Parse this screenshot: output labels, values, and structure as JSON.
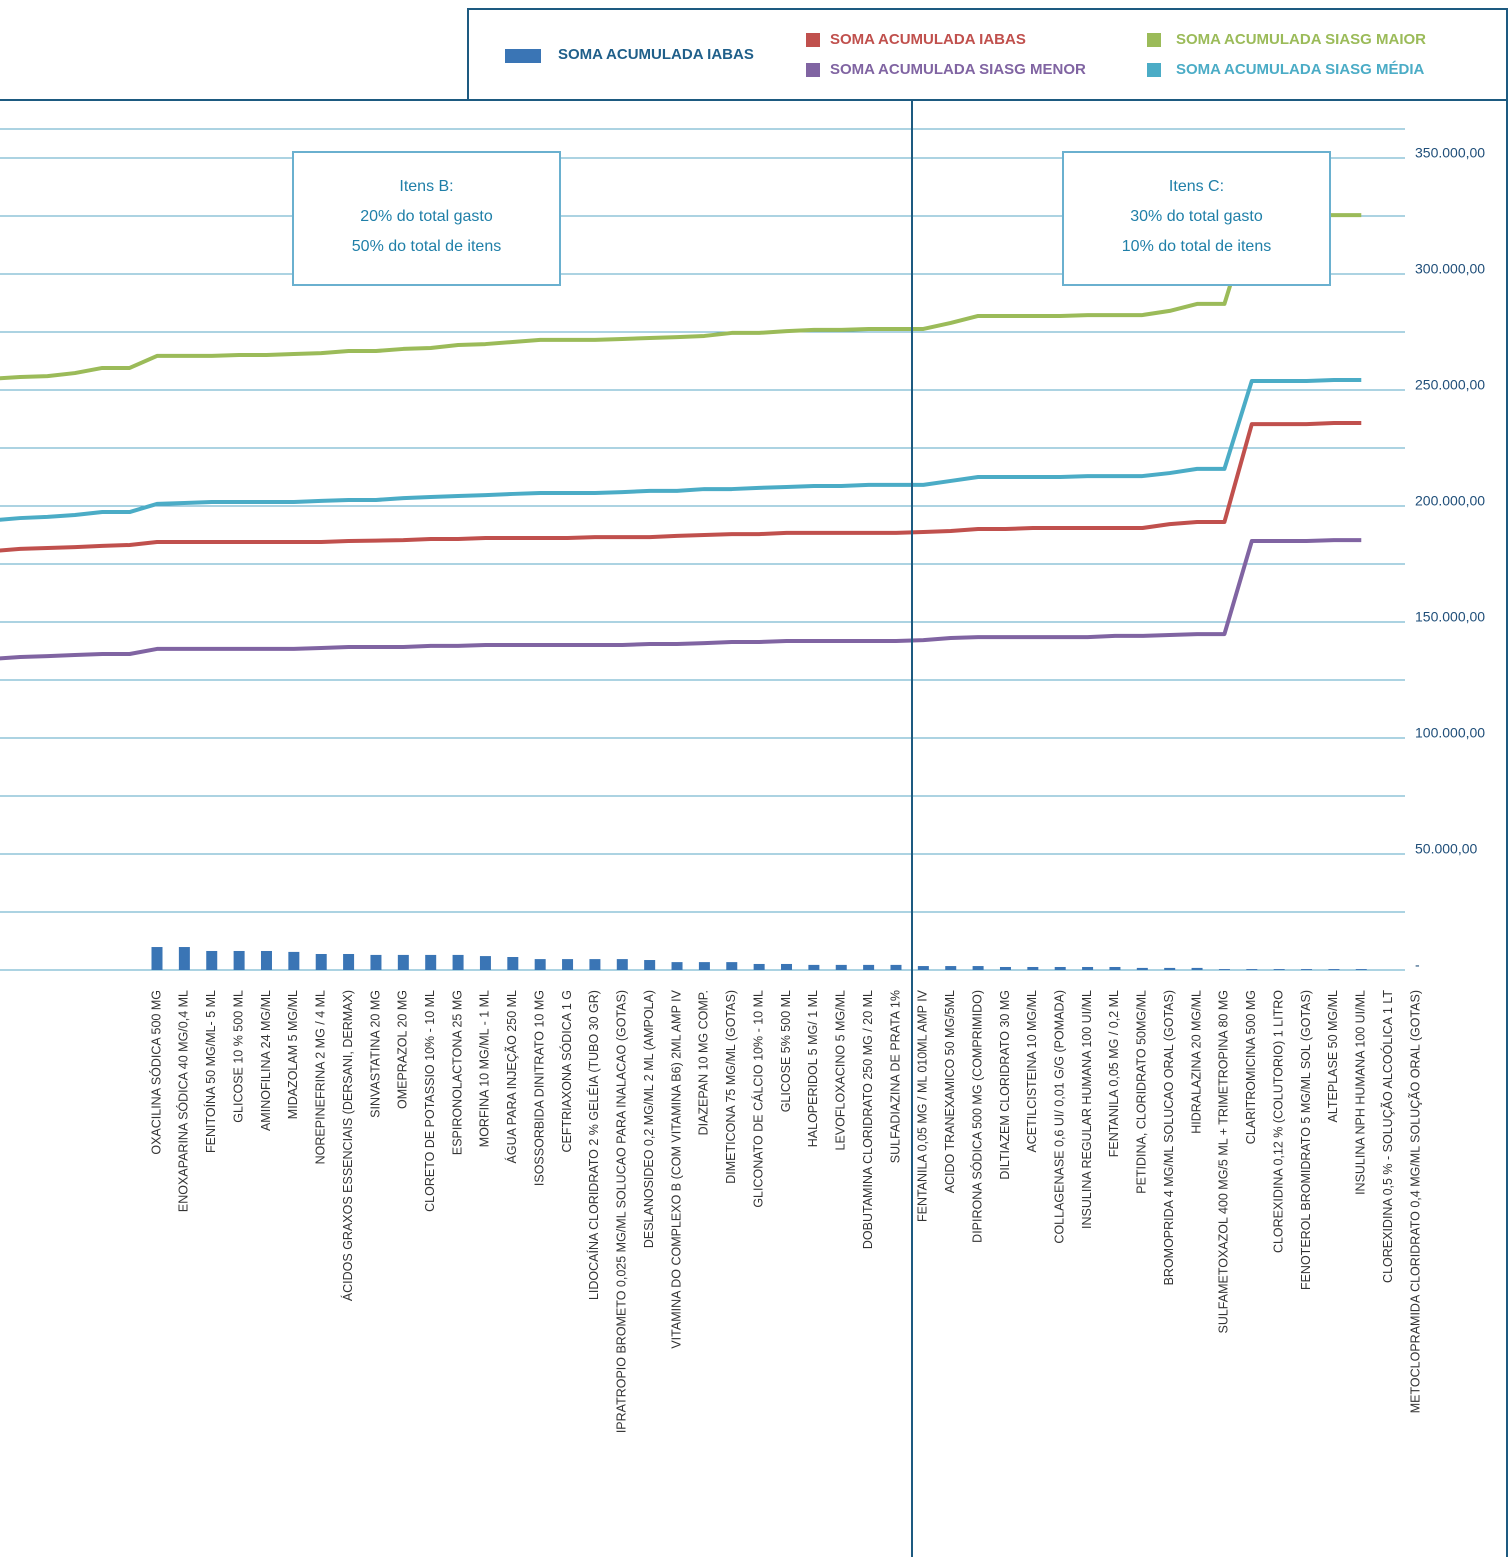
{
  "chart_data": {
    "type": "combo",
    "categories": [
      null,
      null,
      null,
      null,
      null,
      null,
      "OXACILINA SÓDICA 500 MG",
      "ENOXAPARINA SÓDICA 40 MG/0,4 ML",
      "FENITOÍNA 50 MG/ML- 5 ML",
      "GLICOSE 10 % 500 ML",
      "AMINOFILINA 24 MG/ML",
      "MIDAZOLAM 5 MG/ML",
      "NOREPINEFRINA 2 MG / 4 ML",
      "ÁCIDOS GRAXOS ESSENCIAIS (DERSANI, DERMAX)",
      "SINVASTATINA 20 MG",
      "OMEPRAZOL 20 MG",
      "CLORETO DE POTASSIO 10% - 10 ML",
      "ESPIRONOLACTONA 25 MG",
      "MORFINA 10 MG/ML - 1 ML",
      "ÁGUA PARA INJEÇÃO 250 ML",
      "ISOSSORBIDA DINITRATO 10 MG",
      "CEFTRIAXONA SÓDICA 1 G",
      "LIDOCAÍNA CLORIDRATO 2 % GELÉIA (TUBO 30 GR)",
      "IPRATROPIO BROMETO 0,025 MG/ML SOLUCAO PARA INALACAO (GOTAS)",
      "DESLANOSIDEO 0,2 MG/ML 2 ML (AMPOLA)",
      "VITAMINA DO COMPLEXO B (COM VITAMINA B6) 2ML AMP IV",
      "DIAZEPAN 10 MG COMP.",
      "DIMETICONA 75 MG/ML (GOTAS)",
      "GLICONATO DE CÁLCIO 10% - 10 ML",
      "GLICOSE 5% 500 ML",
      "HALOPERIDOL 5 MG/ 1 ML",
      "LEVOFLOXACINO 5 MG/ML",
      "DOBUTAMINA CLORIDRATO 250 MG / 20 ML",
      "SULFADIAZINA DE PRATA 1%",
      "FENTANILA 0,05 MG / ML 010ML AMP IV",
      "ACIDO TRANEXAMICO 50 MG/5ML",
      "DIPIRONA SÓDICA 500 MG (COMPRIMIDO)",
      "DILTIAZEM CLORIDRATO 30 MG",
      "ACETILCISTEINA 10 MG/ML",
      "COLLAGENASE 0,6 UI/ 0,01 G/G (POMADA)",
      "INSULINA REGULAR HUMANA 100 UI/ML",
      "FENTANILA 0,05 MG / 0,2 ML",
      "PETIDINA, CLORIDRATO 50MG/ML",
      "BROMOPRIDA 4 MG/ML SOLUCAO ORAL (GOTAS)",
      "HIDRALAZINA 20 MG/ML",
      "SULFAMETOXAZOL 400 MG/5 ML + TRIMETROPINA 80 MG",
      "CLARITROMICINA 500 MG",
      "CLOREXIDINA 0,12 % (COLUTORIO) 1 LITRO",
      "FENOTEROL BROMIDRATO 5 MG/ML SOL (GOTAS)",
      "ALTEPLASE 50 MG/ML",
      "INSULINA NPH HUMANA 100 UI/ML",
      "CLOREXIDINA 0,5 % - SOLUÇÃO ALCOÓLICA 1 LT",
      "METOCLOPRAMIDA CLORIDRATO 0,4 MG/ML SOLUÇÃO ORAL (GOTAS)"
    ],
    "series": [
      {
        "name": "SOMA ACUMULADA IABAS",
        "type": "bar",
        "color": "#3a75b5",
        "values": [
          null,
          null,
          null,
          null,
          null,
          null,
          9900,
          9900,
          8200,
          8200,
          8200,
          7800,
          6900,
          6900,
          6500,
          6500,
          6500,
          6500,
          6000,
          5600,
          4700,
          4700,
          4700,
          4700,
          4300,
          3400,
          3400,
          3400,
          2600,
          2600,
          2200,
          2200,
          2200,
          2200,
          1700,
          1700,
          1700,
          1300,
          1300,
          1300,
          1300,
          1300,
          900,
          900,
          900,
          400,
          400,
          400,
          400,
          400,
          400,
          null,
          null
        ]
      },
      {
        "name": "SOMA ACUMULADA IABAS",
        "type": "line",
        "color": "#c0504d",
        "values": [
          180600,
          181500,
          181900,
          182300,
          182800,
          183200,
          184500,
          184500,
          184500,
          184500,
          184500,
          184500,
          184500,
          184900,
          185100,
          185300,
          185800,
          185800,
          186200,
          186200,
          186200,
          186200,
          186600,
          186600,
          186600,
          187100,
          187500,
          187900,
          187900,
          188400,
          188400,
          188400,
          188400,
          188400,
          188800,
          189200,
          190100,
          190100,
          190500,
          190500,
          190500,
          190500,
          190500,
          192200,
          193100,
          193100,
          235300,
          235300,
          235300,
          235800,
          235800,
          null,
          null
        ]
      },
      {
        "name": "SOMA ACUMULADA SIASG MAIOR",
        "type": "line",
        "color": "#9bbb59",
        "values": [
          254900,
          255600,
          256000,
          257300,
          259500,
          259500,
          264700,
          264700,
          264700,
          265100,
          265100,
          265500,
          265900,
          266800,
          266800,
          267700,
          268100,
          269400,
          269800,
          270700,
          271600,
          271600,
          271600,
          272000,
          272400,
          272800,
          273300,
          274600,
          274600,
          275400,
          275900,
          275900,
          276300,
          276300,
          276300,
          278900,
          281900,
          281900,
          281900,
          281900,
          282300,
          282300,
          282300,
          284100,
          287100,
          287100,
          325400,
          325400,
          325400,
          325400,
          325400,
          null,
          null
        ]
      },
      {
        "name": "SOMA ACUMULADA SIASG MENOR",
        "type": "line",
        "color": "#8064a2",
        "values": [
          134100,
          134900,
          135300,
          135800,
          136200,
          136200,
          138400,
          138400,
          138400,
          138400,
          138400,
          138400,
          138800,
          139200,
          139200,
          139200,
          139700,
          139700,
          140100,
          140100,
          140100,
          140100,
          140100,
          140100,
          140500,
          140500,
          140900,
          141400,
          141400,
          141800,
          141800,
          141800,
          141800,
          141800,
          142200,
          143100,
          143500,
          143500,
          143500,
          143500,
          143500,
          144000,
          144000,
          144400,
          144800,
          144800,
          184900,
          184900,
          184900,
          185300,
          185300,
          null,
          null
        ]
      },
      {
        "name": "SOMA ACUMULADA SIASG MÉDIA",
        "type": "line",
        "color": "#4bacc6",
        "values": [
          193800,
          194800,
          195300,
          196100,
          197400,
          197400,
          200900,
          201300,
          201700,
          201700,
          201700,
          201700,
          202200,
          202600,
          202600,
          203400,
          203900,
          204300,
          204700,
          205200,
          205600,
          205600,
          205600,
          206000,
          206500,
          206500,
          207300,
          207300,
          207800,
          208200,
          208600,
          208600,
          209100,
          209100,
          209100,
          210800,
          212500,
          212500,
          212500,
          212500,
          212900,
          212900,
          212900,
          214200,
          216000,
          216000,
          253900,
          253900,
          253900,
          254300,
          254300,
          null,
          null
        ]
      }
    ],
    "ylim": [
      0,
      375000
    ],
    "yticks": [
      {
        "value": 0,
        "label": "-"
      },
      {
        "value": 50000,
        "label": "50.000,00"
      },
      {
        "value": 100000,
        "label": "100.000,00"
      },
      {
        "value": 150000,
        "label": "150.000,00"
      },
      {
        "value": 200000,
        "label": "200.000,00"
      },
      {
        "value": 250000,
        "label": "250.000,00"
      },
      {
        "value": 300000,
        "label": "300.000,00"
      },
      {
        "value": 350000,
        "label": "350.000,00"
      }
    ],
    "grid": true,
    "annotations": [
      {
        "lines": [
          "Itens B:",
          "20% do total gasto",
          "50% do total de itens"
        ]
      },
      {
        "lines": [
          "Itens C:",
          "30% do total gasto",
          "10% do total de itens"
        ]
      }
    ]
  }
}
